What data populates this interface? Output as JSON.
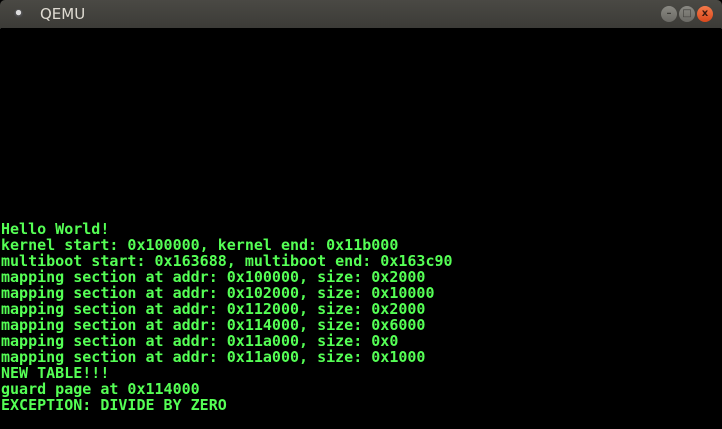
{
  "window": {
    "title": "QEMU",
    "icons": {
      "app": "qemu-app-icon",
      "minimize": "minimize-icon",
      "maximize": "maximize-icon",
      "close": "close-icon"
    },
    "minimize_glyph": "–",
    "maximize_glyph": "□",
    "close_glyph": "x"
  },
  "console": {
    "text_color": "#55ff55",
    "background": "#000000",
    "lines": [
      "Hello World!",
      "kernel start: 0x100000, kernel end: 0x11b000",
      "multiboot start: 0x163688, multiboot end: 0x163c90",
      "mapping section at addr: 0x100000, size: 0x2000",
      "mapping section at addr: 0x102000, size: 0x10000",
      "mapping section at addr: 0x112000, size: 0x2000",
      "mapping section at addr: 0x114000, size: 0x6000",
      "mapping section at addr: 0x11a000, size: 0x0",
      "mapping section at addr: 0x11a000, size: 0x1000",
      "NEW TABLE!!!",
      "guard page at 0x114000",
      "EXCEPTION: DIVIDE BY ZERO"
    ]
  }
}
